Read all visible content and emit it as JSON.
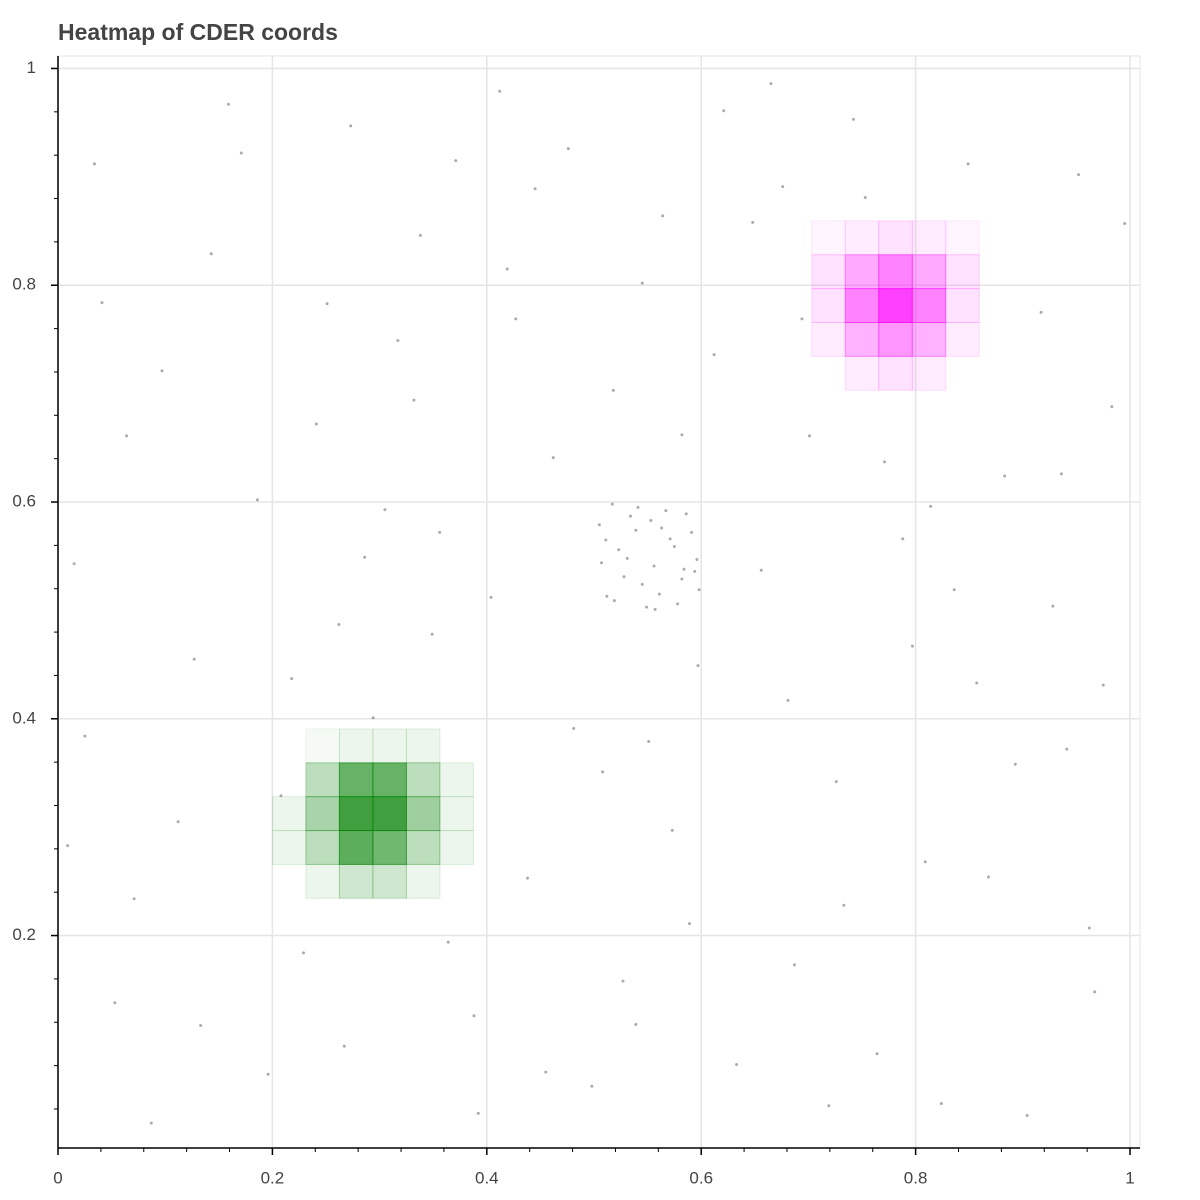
{
  "chart_data": {
    "type": "heatmap",
    "title": "Heatmap of CDER coords",
    "xlim": [
      0,
      1.0093
    ],
    "ylim": [
      0.004,
      1.0115
    ],
    "xticks": [
      0,
      0.2,
      0.4,
      0.6,
      0.8,
      1
    ],
    "yticks": [
      0.2,
      0.4,
      0.6,
      0.8,
      1
    ],
    "xminorticks": [
      0.04,
      0.08,
      0.12,
      0.16,
      0.24,
      0.28,
      0.32,
      0.36,
      0.44,
      0.48,
      0.52,
      0.56,
      0.64,
      0.68,
      0.72,
      0.76,
      0.84,
      0.88,
      0.92,
      0.96
    ],
    "yminorticks": [
      0.04,
      0.08,
      0.12,
      0.16,
      0.24,
      0.28,
      0.32,
      0.36,
      0.44,
      0.48,
      0.52,
      0.56,
      0.64,
      0.68,
      0.72,
      0.76,
      0.84,
      0.88,
      0.92,
      0.96
    ],
    "grid": true,
    "bin_size": 0.03125,
    "series": [
      {
        "color": "#008000",
        "x": [
          0.246875,
          0.278125,
          0.309375,
          0.340625,
          0.246875,
          0.278125,
          0.309375,
          0.340625,
          0.371875,
          0.215625,
          0.246875,
          0.278125,
          0.309375,
          0.340625,
          0.371875,
          0.215625,
          0.246875,
          0.278125,
          0.309375,
          0.340625,
          0.371875,
          0.246875,
          0.278125,
          0.309375,
          0.340625
        ],
        "y": [
          0.375,
          0.375,
          0.375,
          0.375,
          0.34375,
          0.34375,
          0.34375,
          0.34375,
          0.34375,
          0.3125,
          0.3125,
          0.3125,
          0.3125,
          0.3125,
          0.3125,
          0.28125,
          0.28125,
          0.28125,
          0.28125,
          0.28125,
          0.28125,
          0.25,
          0.25,
          0.25,
          0.25
        ],
        "values": [
          0.05,
          0.1,
          0.1,
          0.1,
          0.35,
          0.8,
          0.8,
          0.35,
          0.1,
          0.1,
          0.45,
          1.0,
          1.0,
          0.5,
          0.1,
          0.1,
          0.35,
          0.85,
          0.75,
          0.35,
          0.1,
          0.1,
          0.25,
          0.25,
          0.1
        ]
      },
      {
        "color": "#ff00ff",
        "x": [
          0.71875,
          0.75,
          0.78125,
          0.8125,
          0.84375,
          0.71875,
          0.75,
          0.78125,
          0.8125,
          0.84375,
          0.71875,
          0.75,
          0.78125,
          0.8125,
          0.84375,
          0.71875,
          0.75,
          0.78125,
          0.8125,
          0.84375,
          0.75,
          0.78125,
          0.8125
        ],
        "y": [
          0.84375,
          0.84375,
          0.84375,
          0.84375,
          0.84375,
          0.8125,
          0.8125,
          0.8125,
          0.8125,
          0.8125,
          0.78125,
          0.78125,
          0.78125,
          0.78125,
          0.78125,
          0.75,
          0.75,
          0.75,
          0.75,
          0.75,
          0.71875,
          0.71875,
          0.71875
        ],
        "values": [
          0.05,
          0.1,
          0.15,
          0.1,
          0.05,
          0.15,
          0.45,
          0.65,
          0.45,
          0.15,
          0.15,
          0.65,
          1.0,
          0.65,
          0.15,
          0.1,
          0.4,
          0.55,
          0.4,
          0.1,
          0.1,
          0.15,
          0.1
        ]
      }
    ],
    "points": {
      "color": "#666666",
      "x": [
        0.034,
        0.127,
        0.251,
        0.388,
        0.462,
        0.573,
        0.648,
        0.719,
        0.836,
        0.941,
        0.983,
        0.071,
        0.159,
        0.294,
        0.356,
        0.419,
        0.527,
        0.612,
        0.764,
        0.883,
        0.962,
        0.015,
        0.208,
        0.332,
        0.445,
        0.498,
        0.681,
        0.742,
        0.809,
        0.917,
        0.053,
        0.186,
        0.273,
        0.404,
        0.551,
        0.633,
        0.701,
        0.857,
        0.995,
        0.097,
        0.229,
        0.317,
        0.476,
        0.589,
        0.665,
        0.788,
        0.904,
        0.025,
        0.143,
        0.262,
        0.371,
        0.438,
        0.518,
        0.597,
        0.726,
        0.849,
        0.928,
        0.064,
        0.196,
        0.305,
        0.392,
        0.481,
        0.564,
        0.687,
        0.771,
        0.868,
        0.975,
        0.112,
        0.241,
        0.349,
        0.427,
        0.539,
        0.621,
        0.753,
        0.824,
        0.952,
        0.041,
        0.171,
        0.286,
        0.364,
        0.508,
        0.656,
        0.733,
        0.893,
        0.087,
        0.218,
        0.338,
        0.455,
        0.582,
        0.694,
        0.797,
        0.936,
        0.009,
        0.133,
        0.267,
        0.412,
        0.545,
        0.676,
        0.814,
        0.967,
        0.512,
        0.534,
        0.556,
        0.578,
        0.591,
        0.523,
        0.545,
        0.567,
        0.584,
        0.505,
        0.528,
        0.549,
        0.571,
        0.596,
        0.517,
        0.539,
        0.561,
        0.582,
        0.507,
        0.553,
        0.575,
        0.531,
        0.598,
        0.519,
        0.563,
        0.541,
        0.586,
        0.511,
        0.557,
        0.594
      ],
      "y": [
        0.912,
        0.455,
        0.783,
        0.126,
        0.641,
        0.297,
        0.858,
        0.043,
        0.519,
        0.372,
        0.688,
        0.234,
        0.967,
        0.401,
        0.572,
        0.815,
        0.158,
        0.736,
        0.091,
        0.624,
        0.207,
        0.543,
        0.329,
        0.694,
        0.889,
        0.061,
        0.417,
        0.953,
        0.268,
        0.775,
        0.138,
        0.602,
        0.947,
        0.512,
        0.379,
        0.081,
        0.661,
        0.433,
        0.857,
        0.721,
        0.184,
        0.749,
        0.926,
        0.211,
        0.986,
        0.566,
        0.034,
        0.384,
        0.829,
        0.487,
        0.915,
        0.253,
        0.703,
        0.449,
        0.342,
        0.912,
        0.504,
        0.661,
        0.072,
        0.593,
        0.036,
        0.391,
        0.864,
        0.173,
        0.637,
        0.254,
        0.431,
        0.305,
        0.672,
        0.478,
        0.769,
        0.118,
        0.961,
        0.881,
        0.045,
        0.902,
        0.784,
        0.922,
        0.549,
        0.194,
        0.351,
        0.537,
        0.228,
        0.358,
        0.027,
        0.437,
        0.846,
        0.074,
        0.662,
        0.769,
        0.467,
        0.626,
        0.283,
        0.117,
        0.098,
        0.979,
        0.802,
        0.891,
        0.596,
        0.148,
        0.513,
        0.587,
        0.541,
        0.506,
        0.572,
        0.556,
        0.524,
        0.592,
        0.538,
        0.579,
        0.531,
        0.503,
        0.566,
        0.547,
        0.598,
        0.574,
        0.515,
        0.529,
        0.544,
        0.583,
        0.559,
        0.548,
        0.519,
        0.509,
        0.576,
        0.595,
        0.589,
        0.565,
        0.501,
        0.536
      ]
    }
  }
}
